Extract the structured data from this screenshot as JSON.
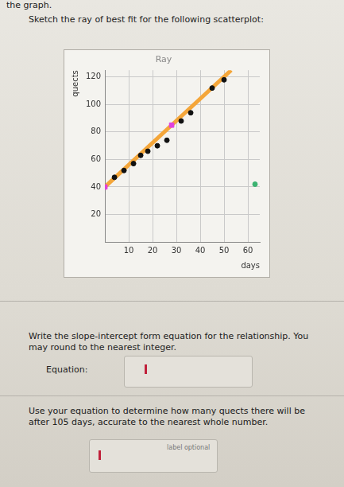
{
  "page": {
    "header": "the graph.",
    "question_1": "Sketch the ray of best fit for the following scatterplot:",
    "question_2": "Write the slope-intercept form equation for the relationship. You may round to the nearest integer.",
    "equation_label": "Equation:",
    "question_3": "Use your equation to determine how many quects there will be after 105 days, accurate to the nearest whole number.",
    "answer_placeholder": "label optional"
  },
  "chart_data": {
    "type": "scatter",
    "title": "Ray",
    "x_label": "days",
    "y_label": "quects",
    "xlim": [
      0,
      65
    ],
    "ylim": [
      0,
      125
    ],
    "xticks": [
      10,
      20,
      30,
      40,
      50,
      60
    ],
    "yticks": [
      20,
      40,
      60,
      80,
      100,
      120
    ],
    "grid": true,
    "series": [
      {
        "type": "scatter",
        "color": "#111111",
        "marker": "circle",
        "x": [
          4,
          8,
          12,
          15,
          18,
          22,
          26,
          32,
          36,
          45,
          50
        ],
        "values": [
          47,
          52,
          57,
          63,
          66,
          70,
          74,
          88,
          94,
          112,
          118
        ]
      },
      {
        "type": "line",
        "color": "#f4a63a",
        "line_style": "solid",
        "x": [
          0,
          28,
          53
        ],
        "values": [
          40,
          85,
          125
        ]
      },
      {
        "type": "scatter",
        "color": "#e040e0",
        "marker": "square",
        "x": [
          0,
          28
        ],
        "values": [
          40,
          85
        ]
      },
      {
        "type": "scatter",
        "color": "#3cb371",
        "marker": "circle",
        "x": [
          63
        ],
        "values": [
          42
        ]
      }
    ]
  }
}
